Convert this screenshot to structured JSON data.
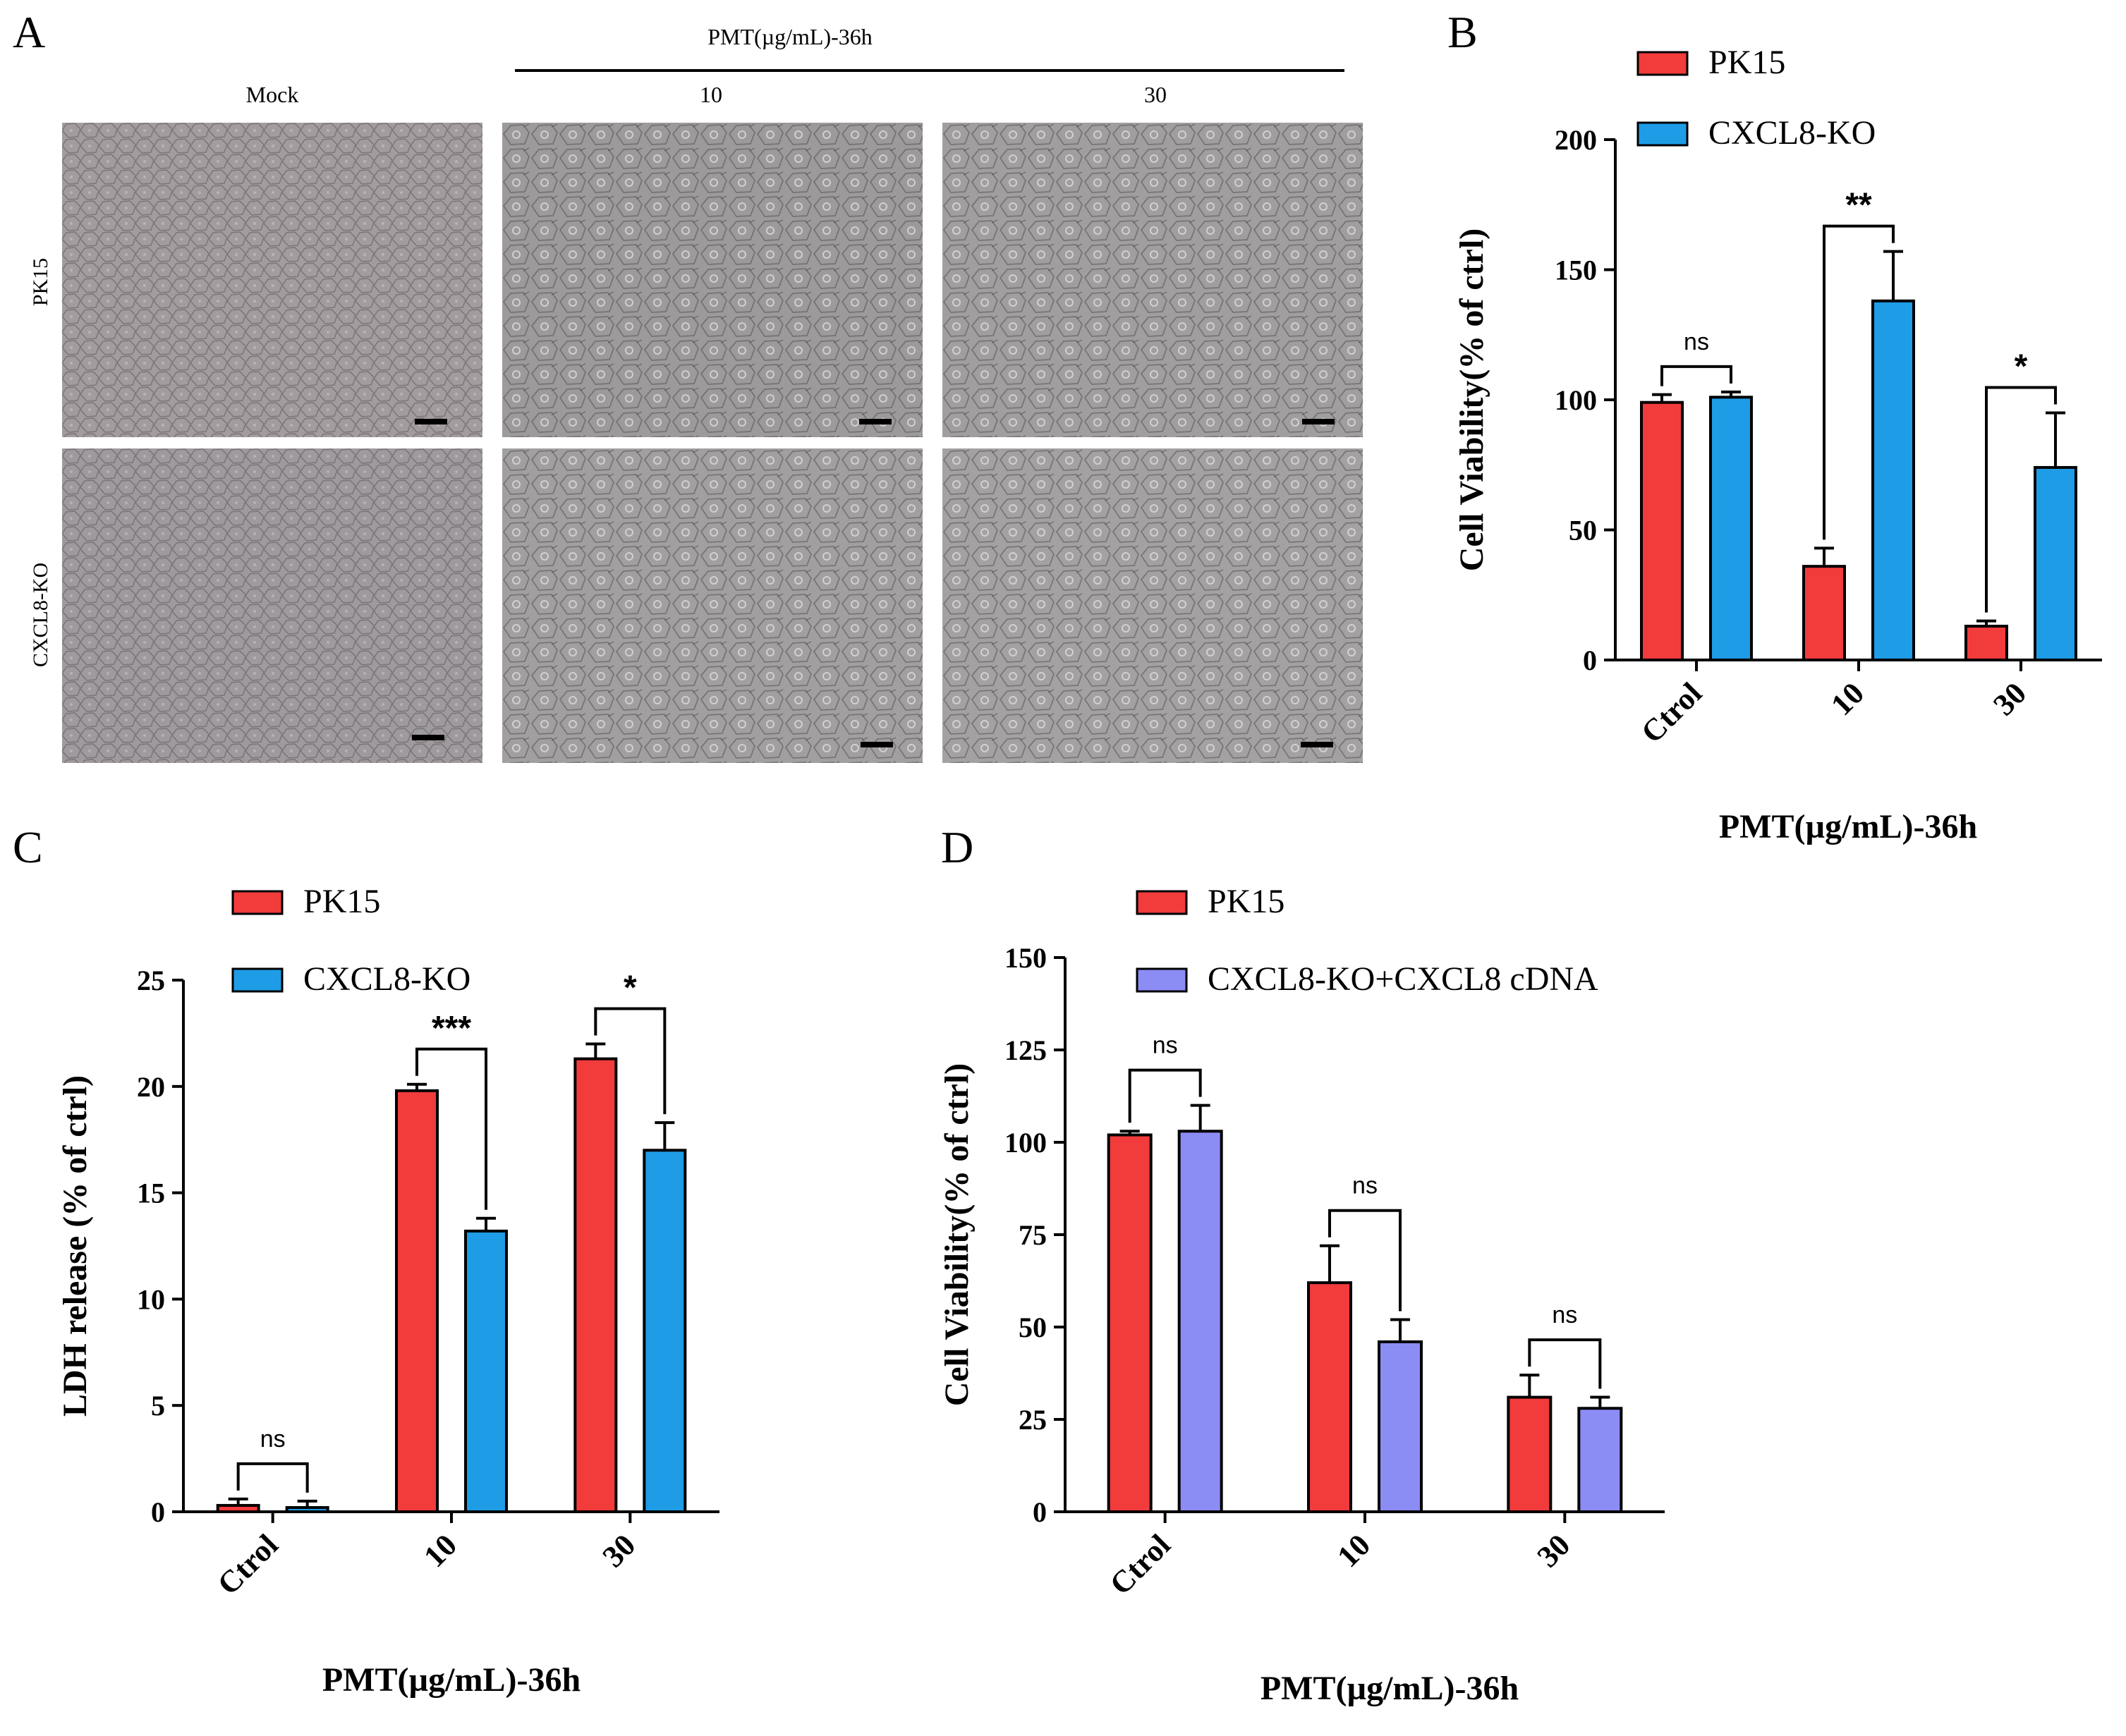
{
  "panel_a": {
    "letter": "A",
    "treatment_header": "PMT(µg/mL)-36h",
    "column_labels": [
      "Mock",
      "10",
      "30"
    ],
    "row_labels": [
      "PK15",
      "CXCL8-KO"
    ]
  },
  "colors": {
    "pk15": "#f23b3b",
    "cxcl8_ko": "#1e9ce6",
    "rescue": "#8c8cf5"
  },
  "chart_data": [
    {
      "panel": "B",
      "type": "bar",
      "categories": [
        "Ctrol",
        "10",
        "30"
      ],
      "xlabel": "PMT(µg/mL)-36h",
      "ylabel": "Cell Viability(% of ctrl)",
      "ylim": [
        0,
        200
      ],
      "yticks": [
        0,
        50,
        100,
        150,
        200
      ],
      "series": [
        {
          "name": "PK15",
          "color": "#f23b3b",
          "values": [
            99,
            36,
            13
          ],
          "errors": [
            3,
            7,
            2
          ]
        },
        {
          "name": "CXCL8-KO",
          "color": "#1e9ce6",
          "values": [
            101,
            138,
            74
          ],
          "errors": [
            2,
            19,
            21
          ]
        }
      ],
      "significance": [
        "ns",
        "**",
        "*"
      ],
      "legend_position": "top"
    },
    {
      "panel": "C",
      "type": "bar",
      "categories": [
        "Ctrol",
        "10",
        "30"
      ],
      "xlabel": "PMT(µg/mL)-36h",
      "ylabel": "LDH release (% of ctrl)",
      "ylim": [
        0,
        25
      ],
      "yticks": [
        0,
        5,
        10,
        15,
        20,
        25
      ],
      "series": [
        {
          "name": "PK15",
          "color": "#f23b3b",
          "values": [
            0.3,
            19.8,
            21.3
          ],
          "errors": [
            0.3,
            0.3,
            0.7
          ]
        },
        {
          "name": "CXCL8-KO",
          "color": "#1e9ce6",
          "values": [
            0.2,
            13.2,
            17.0
          ],
          "errors": [
            0.3,
            0.6,
            1.3
          ]
        }
      ],
      "significance": [
        "ns",
        "***",
        "*"
      ],
      "legend_position": "top"
    },
    {
      "panel": "D",
      "type": "bar",
      "categories": [
        "Ctrol",
        "10",
        "30"
      ],
      "xlabel": "PMT(µg/mL)-36h",
      "ylabel": "Cell Viability(% of ctrl)",
      "ylim": [
        0,
        150
      ],
      "yticks": [
        0,
        25,
        50,
        75,
        100,
        125,
        150
      ],
      "series": [
        {
          "name": "PK15",
          "color": "#f23b3b",
          "values": [
            102,
            62,
            31
          ],
          "errors": [
            1,
            10,
            6
          ]
        },
        {
          "name": "CXCL8-KO+CXCL8 cDNA",
          "color": "#8c8cf5",
          "values": [
            103,
            46,
            28
          ],
          "errors": [
            7,
            6,
            3
          ]
        }
      ],
      "significance": [
        "ns",
        "ns",
        "ns"
      ],
      "legend_position": "top"
    }
  ]
}
